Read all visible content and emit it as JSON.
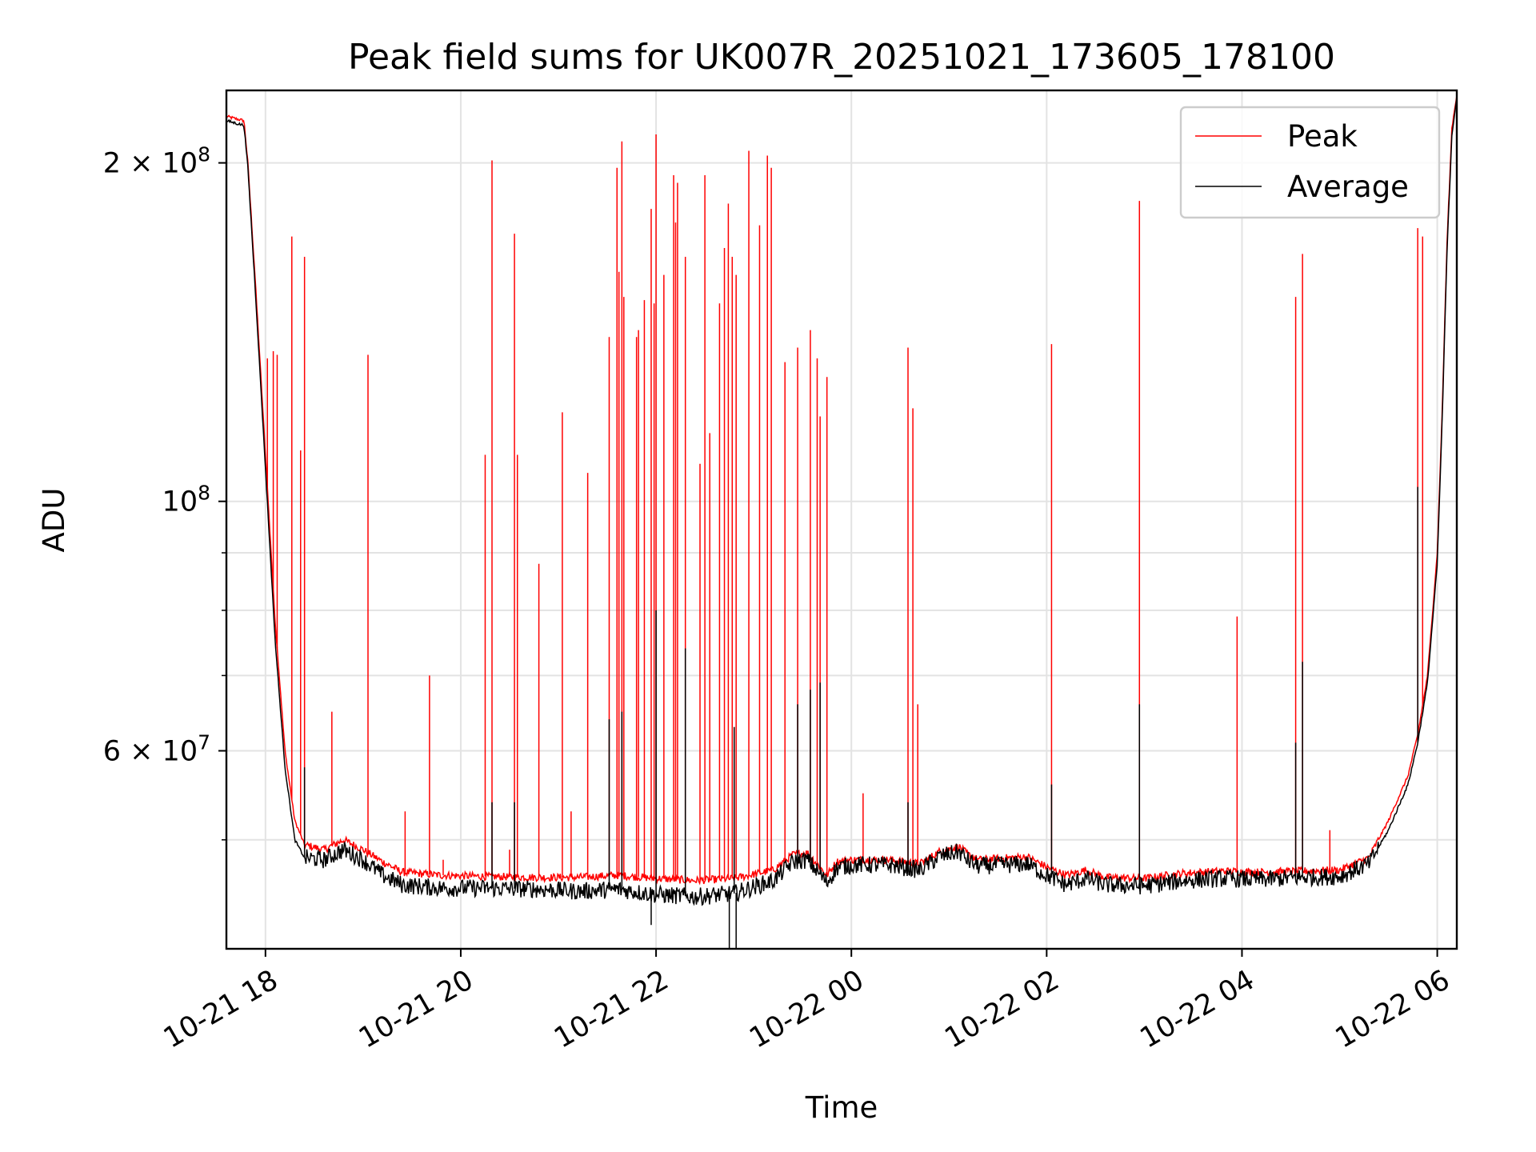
{
  "chart_data": {
    "type": "line",
    "title": "Peak field sums for UK007R_20251021_173605_178100",
    "xlabel": "Time",
    "ylabel": "ADU",
    "yscale": "log",
    "xlim_hours": [
      17.6,
      30.2
    ],
    "ylim": [
      40000000,
      232000000
    ],
    "grid": true,
    "legend_position": "top-right",
    "x_ticks": [
      {
        "hour": 18,
        "label": "10-21 18"
      },
      {
        "hour": 20,
        "label": "10-21 20"
      },
      {
        "hour": 22,
        "label": "10-21 22"
      },
      {
        "hour": 24,
        "label": "10-22 00"
      },
      {
        "hour": 26,
        "label": "10-22 02"
      },
      {
        "hour": 28,
        "label": "10-22 04"
      },
      {
        "hour": 30,
        "label": "10-22 06"
      }
    ],
    "y_ticks": [
      {
        "value": 60000000,
        "base": "6 × 10",
        "exp": "7"
      },
      {
        "value": 100000000,
        "base": "10",
        "exp": "8"
      },
      {
        "value": 200000000,
        "base": "2 × 10",
        "exp": "8"
      }
    ],
    "y_minor_ticks": [
      50000000,
      70000000,
      80000000,
      90000000
    ],
    "series": [
      {
        "name": "Peak",
        "color": "#ff0000",
        "baseline": [
          [
            17.6,
            220000000
          ],
          [
            17.78,
            218000000
          ],
          [
            17.82,
            200000000
          ],
          [
            17.9,
            155000000
          ],
          [
            18.0,
            110000000
          ],
          [
            18.1,
            78000000
          ],
          [
            18.2,
            60000000
          ],
          [
            18.3,
            52000000
          ],
          [
            18.4,
            49500000
          ],
          [
            18.6,
            49000000
          ],
          [
            18.8,
            50000000
          ],
          [
            19.0,
            49000000
          ],
          [
            19.2,
            47800000
          ],
          [
            19.4,
            46800000
          ],
          [
            19.8,
            46500000
          ],
          [
            20.2,
            46400000
          ],
          [
            20.8,
            46300000
          ],
          [
            21.2,
            46300000
          ],
          [
            21.6,
            46500000
          ],
          [
            22.0,
            46200000
          ],
          [
            22.4,
            46000000
          ],
          [
            22.8,
            46200000
          ],
          [
            23.2,
            47000000
          ],
          [
            23.4,
            48500000
          ],
          [
            23.55,
            48700000
          ],
          [
            23.75,
            46500000
          ],
          [
            23.85,
            47800000
          ],
          [
            24.0,
            48000000
          ],
          [
            24.4,
            48000000
          ],
          [
            24.7,
            47600000
          ],
          [
            24.9,
            48800000
          ],
          [
            25.1,
            49300000
          ],
          [
            25.2,
            48500000
          ],
          [
            25.3,
            48000000
          ],
          [
            25.8,
            48300000
          ],
          [
            26.0,
            47300000
          ],
          [
            26.2,
            46500000
          ],
          [
            26.4,
            47000000
          ],
          [
            26.6,
            46300000
          ],
          [
            27.0,
            46200000
          ],
          [
            27.4,
            46700000
          ],
          [
            27.8,
            46900000
          ],
          [
            28.2,
            46800000
          ],
          [
            28.6,
            46900000
          ],
          [
            29.0,
            47000000
          ],
          [
            29.3,
            48200000
          ],
          [
            29.5,
            52000000
          ],
          [
            29.7,
            57000000
          ],
          [
            29.8,
            62000000
          ],
          [
            29.9,
            70000000
          ],
          [
            30.0,
            90000000
          ],
          [
            30.05,
            120000000
          ],
          [
            30.1,
            170000000
          ],
          [
            30.15,
            215000000
          ],
          [
            30.2,
            230000000
          ]
        ],
        "spikes": [
          [
            18.02,
            134000000
          ],
          [
            18.08,
            136000000
          ],
          [
            18.12,
            135000000
          ],
          [
            18.27,
            172000000
          ],
          [
            18.36,
            111000000
          ],
          [
            18.4,
            165000000
          ],
          [
            18.68,
            65000000
          ],
          [
            19.05,
            135000000
          ],
          [
            19.43,
            53000000
          ],
          [
            19.68,
            70000000
          ],
          [
            19.82,
            48000000
          ],
          [
            20.25,
            110000000
          ],
          [
            20.32,
            201000000
          ],
          [
            20.5,
            49000000
          ],
          [
            20.55,
            173000000
          ],
          [
            20.58,
            110000000
          ],
          [
            20.8,
            88000000
          ],
          [
            21.04,
            120000000
          ],
          [
            21.13,
            53000000
          ],
          [
            21.3,
            106000000
          ],
          [
            21.52,
            140000000
          ],
          [
            21.6,
            198000000
          ],
          [
            21.62,
            160000000
          ],
          [
            21.65,
            209000000
          ],
          [
            21.67,
            152000000
          ],
          [
            21.8,
            140000000
          ],
          [
            21.82,
            142000000
          ],
          [
            21.88,
            151000000
          ],
          [
            21.95,
            182000000
          ],
          [
            21.98,
            150000000
          ],
          [
            22.0,
            212000000
          ],
          [
            22.08,
            159000000
          ],
          [
            22.18,
            195000000
          ],
          [
            22.2,
            177000000
          ],
          [
            22.22,
            192000000
          ],
          [
            22.3,
            165000000
          ],
          [
            22.45,
            108000000
          ],
          [
            22.5,
            195000000
          ],
          [
            22.55,
            115000000
          ],
          [
            22.65,
            150000000
          ],
          [
            22.7,
            168000000
          ],
          [
            22.74,
            184000000
          ],
          [
            22.78,
            165000000
          ],
          [
            22.82,
            159000000
          ],
          [
            22.95,
            205000000
          ],
          [
            23.06,
            176000000
          ],
          [
            23.14,
            203000000
          ],
          [
            23.18,
            198000000
          ],
          [
            23.32,
            133000000
          ],
          [
            23.45,
            137000000
          ],
          [
            23.58,
            142000000
          ],
          [
            23.65,
            134000000
          ],
          [
            23.68,
            119000000
          ],
          [
            23.75,
            129000000
          ],
          [
            24.12,
            55000000
          ],
          [
            24.58,
            137000000
          ],
          [
            24.63,
            121000000
          ],
          [
            24.68,
            66000000
          ],
          [
            26.05,
            138000000
          ],
          [
            26.95,
            185000000
          ],
          [
            27.95,
            79000000
          ],
          [
            28.55,
            152000000
          ],
          [
            28.62,
            166000000
          ],
          [
            28.9,
            51000000
          ],
          [
            29.8,
            175000000
          ],
          [
            29.85,
            172000000
          ]
        ]
      },
      {
        "name": "Average",
        "color": "#000000",
        "baseline": [
          [
            17.6,
            218000000
          ],
          [
            17.78,
            216000000
          ],
          [
            17.82,
            198000000
          ],
          [
            17.9,
            152000000
          ],
          [
            18.0,
            107000000
          ],
          [
            18.1,
            75000000
          ],
          [
            18.2,
            58000000
          ],
          [
            18.3,
            50000000
          ],
          [
            18.4,
            48200000
          ],
          [
            18.6,
            48000000
          ],
          [
            18.8,
            49000000
          ],
          [
            19.0,
            48000000
          ],
          [
            19.2,
            46500000
          ],
          [
            19.4,
            45600000
          ],
          [
            19.8,
            45300000
          ],
          [
            20.2,
            45300000
          ],
          [
            20.8,
            45200000
          ],
          [
            21.2,
            45000000
          ],
          [
            21.6,
            45200000
          ],
          [
            22.0,
            44700000
          ],
          [
            22.4,
            44500000
          ],
          [
            22.8,
            44800000
          ],
          [
            23.2,
            46000000
          ],
          [
            23.4,
            47800000
          ],
          [
            23.55,
            48000000
          ],
          [
            23.75,
            45800000
          ],
          [
            23.85,
            47200000
          ],
          [
            24.0,
            47500000
          ],
          [
            24.4,
            47500000
          ],
          [
            24.7,
            47000000
          ],
          [
            24.9,
            48300000
          ],
          [
            25.1,
            48800000
          ],
          [
            25.2,
            47900000
          ],
          [
            25.3,
            47400000
          ],
          [
            25.8,
            47600000
          ],
          [
            26.0,
            46500000
          ],
          [
            26.2,
            45600000
          ],
          [
            26.4,
            46200000
          ],
          [
            26.6,
            45600000
          ],
          [
            27.0,
            45500000
          ],
          [
            27.4,
            46000000
          ],
          [
            27.8,
            46200000
          ],
          [
            28.2,
            46100000
          ],
          [
            28.6,
            46300000
          ],
          [
            29.0,
            46400000
          ],
          [
            29.3,
            47600000
          ],
          [
            29.5,
            51000000
          ],
          [
            29.7,
            56000000
          ],
          [
            29.8,
            61000000
          ],
          [
            29.9,
            69000000
          ],
          [
            30.0,
            88000000
          ],
          [
            30.05,
            118000000
          ],
          [
            30.1,
            167000000
          ],
          [
            30.15,
            212000000
          ],
          [
            30.2,
            229000000
          ]
        ],
        "spikes": [
          [
            18.4,
            58000000
          ],
          [
            20.32,
            54000000
          ],
          [
            20.55,
            54000000
          ],
          [
            21.52,
            64000000
          ],
          [
            21.65,
            65000000
          ],
          [
            22.0,
            80000000
          ],
          [
            22.3,
            74000000
          ],
          [
            22.8,
            63000000
          ],
          [
            23.45,
            66000000
          ],
          [
            23.58,
            68000000
          ],
          [
            23.68,
            69000000
          ],
          [
            24.58,
            54000000
          ],
          [
            26.05,
            56000000
          ],
          [
            26.95,
            66000000
          ],
          [
            28.55,
            61000000
          ],
          [
            28.62,
            72000000
          ],
          [
            29.8,
            103000000
          ],
          [
            22.75,
            40000000
          ],
          [
            22.82,
            40000000
          ],
          [
            21.95,
            42000000
          ]
        ]
      }
    ]
  }
}
